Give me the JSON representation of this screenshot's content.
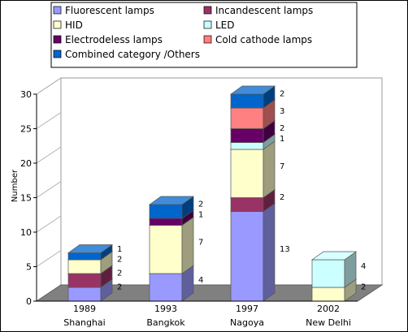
{
  "chart_data": {
    "type": "bar",
    "stacked": true,
    "three_d": true,
    "ylabel": "Number",
    "ylim": [
      0,
      30
    ],
    "yticks": [
      0,
      5,
      10,
      15,
      20,
      25,
      30
    ],
    "categories": [
      {
        "year": "1989",
        "city": "Shanghai"
      },
      {
        "year": "1993",
        "city": "Bangkok"
      },
      {
        "year": "1997",
        "city": "Nagoya"
      },
      {
        "year": "2002",
        "city": "New Delhi"
      }
    ],
    "series": [
      {
        "name": "Fluorescent lamps",
        "color": "#9999ff",
        "values": [
          2,
          4,
          13,
          0
        ]
      },
      {
        "name": "Incandescent lamps",
        "color": "#993366",
        "values": [
          2,
          0,
          2,
          0
        ]
      },
      {
        "name": "HID",
        "color": "#ffffcc",
        "values": [
          2,
          7,
          7,
          2
        ]
      },
      {
        "name": "LED",
        "color": "#ccffff",
        "values": [
          0,
          0,
          1,
          4
        ]
      },
      {
        "name": "Electrodeless lamps",
        "color": "#660066",
        "values": [
          0,
          1,
          2,
          0
        ]
      },
      {
        "name": "Cold cathode lamps",
        "color": "#ff8080",
        "values": [
          0,
          0,
          3,
          0
        ]
      },
      {
        "name": "Combined category /Others",
        "color": "#0066cc",
        "values": [
          1,
          2,
          2,
          0
        ]
      }
    ],
    "legend_position": "top",
    "grid": false
  }
}
